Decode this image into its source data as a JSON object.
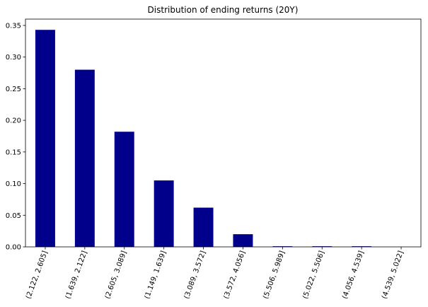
{
  "chart_data": {
    "type": "bar",
    "title": "Distribution of ending returns (20Y)",
    "xlabel": "",
    "ylabel": "",
    "categories": [
      "(2.122, 2.605]",
      "(1.639, 2.122]",
      "(2.605, 3.089]",
      "(1.149, 1.639]",
      "(3.089, 3.572]",
      "(3.572, 4.056]",
      "(5.506, 5.989]",
      "(5.022, 5.506]",
      "(4.056, 4.539]",
      "(4.539, 5.022]"
    ],
    "values": [
      0.343,
      0.28,
      0.182,
      0.105,
      0.062,
      0.02,
      0.001,
      0.001,
      0.001,
      0.0
    ],
    "ylim": [
      0,
      0.36
    ],
    "yticks": [
      0.0,
      0.05,
      0.1,
      0.15,
      0.2,
      0.25,
      0.3,
      0.35
    ],
    "ytick_labels": [
      "0.00",
      "0.05",
      "0.10",
      "0.15",
      "0.20",
      "0.25",
      "0.30",
      "0.35"
    ],
    "grid": false,
    "legend": "none",
    "bar_color": "#00008b"
  }
}
